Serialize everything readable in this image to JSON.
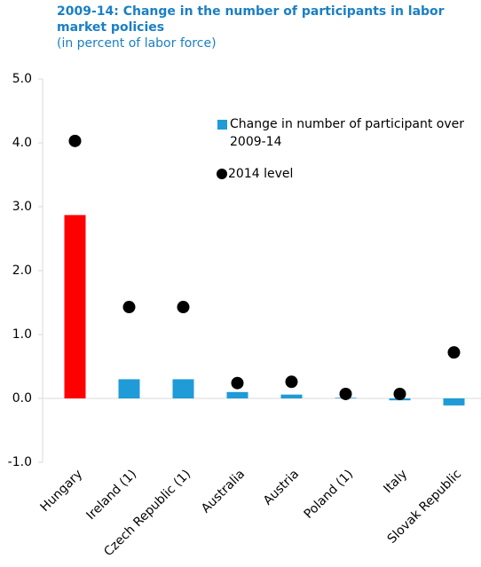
{
  "chart_data": {
    "type": "bar",
    "title": "2009-14: Change in the number of participants in labor market policies",
    "subtitle": "(in percent of labor force)",
    "categories": [
      "Hungary",
      "Ireland (1)",
      "Czech Republic (1)",
      "Australia",
      "Austria",
      "Poland (1)",
      "Italy",
      "Slovak Republic"
    ],
    "series": [
      {
        "name": "Change in number of participant over 2009-14",
        "type": "bar",
        "color": "#1f9bd7",
        "colors": [
          "#ff0000",
          "#1f9bd7",
          "#1f9bd7",
          "#1f9bd7",
          "#1f9bd7",
          "#1f9bd7",
          "#1f9bd7",
          "#1f9bd7"
        ],
        "values": [
          2.87,
          0.3,
          0.3,
          0.1,
          0.06,
          0.01,
          -0.03,
          -0.11
        ]
      },
      {
        "name": "2014 level",
        "type": "marker",
        "color": "#000000",
        "values": [
          4.03,
          1.43,
          1.43,
          0.24,
          0.26,
          0.07,
          0.07,
          0.72
        ]
      }
    ],
    "ylim": [
      -1,
      5
    ],
    "yticks": [
      {
        "value": -1,
        "label": "-1.0"
      },
      {
        "value": 0,
        "label": "0.0"
      },
      {
        "value": 1,
        "label": "1.0"
      },
      {
        "value": 2,
        "label": "2.0"
      },
      {
        "value": 3,
        "label": "3.0"
      },
      {
        "value": 4,
        "label": "4.0"
      },
      {
        "value": 5,
        "label": "5.0"
      }
    ],
    "grid": false
  }
}
